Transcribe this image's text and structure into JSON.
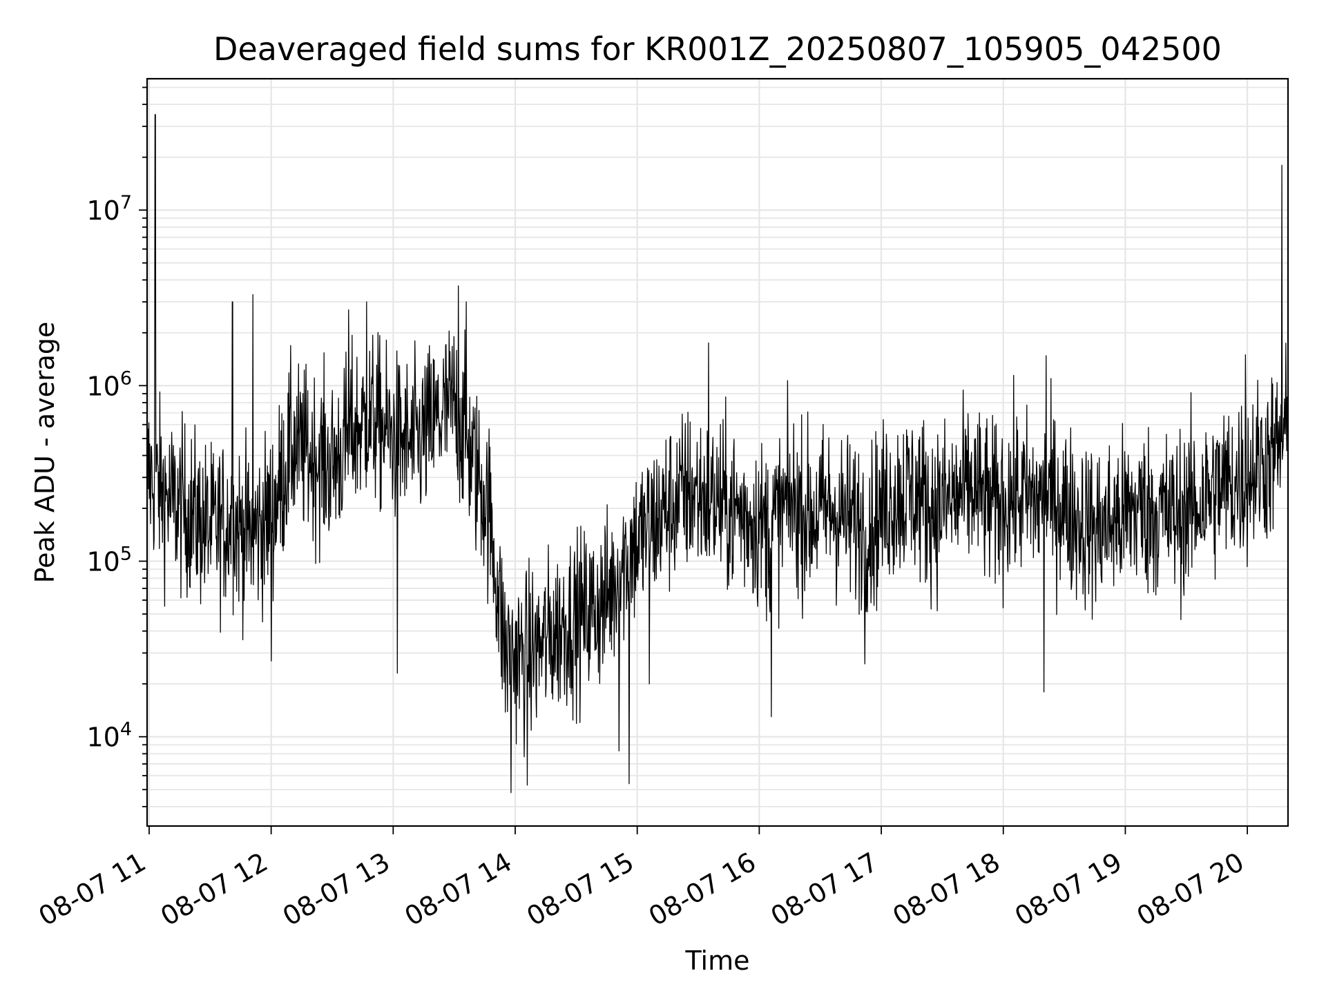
{
  "chart_data": {
    "type": "line",
    "title": "Deaveraged field sums for KR001Z_20250807_105905_042500",
    "xlabel": "Time",
    "ylabel": "Peak ADU - average",
    "y_scale": "log",
    "ylim": [
      3100,
      56000000
    ],
    "x_tick_labels": [
      "08-07 11",
      "08-07 12",
      "08-07 13",
      "08-07 14",
      "08-07 15",
      "08-07 16",
      "08-07 17",
      "08-07 18",
      "08-07 19",
      "08-07 20"
    ],
    "x_tick_times": [
      "2025-08-07 11:00",
      "2025-08-07 12:00",
      "2025-08-07 13:00",
      "2025-08-07 14:00",
      "2025-08-07 15:00",
      "2025-08-07 16:00",
      "2025-08-07 17:00",
      "2025-08-07 18:00",
      "2025-08-07 19:00",
      "2025-08-07 20:00"
    ],
    "x_range": [
      "2025-08-07 10:59",
      "2025-08-07 20:20"
    ],
    "y_tick_labels": [
      {
        "base": "10",
        "exp": "4",
        "value": 10000
      },
      {
        "base": "10",
        "exp": "5",
        "value": 100000
      },
      {
        "base": "10",
        "exp": "6",
        "value": 1000000
      },
      {
        "base": "10",
        "exp": "7",
        "value": 10000000
      }
    ],
    "grid": true,
    "line_color": "#000000",
    "grid_color": "#e6e6e6",
    "series": [
      {
        "x": [
          "2025-08-07 10:59",
          "2025-08-07 11:03",
          "2025-08-07 11:10",
          "2025-08-07 11:20",
          "2025-08-07 11:30",
          "2025-08-07 11:40",
          "2025-08-07 11:50",
          "2025-08-07 12:00",
          "2025-08-07 12:10",
          "2025-08-07 12:20",
          "2025-08-07 12:30",
          "2025-08-07 12:40",
          "2025-08-07 12:50",
          "2025-08-07 13:00",
          "2025-08-07 13:10",
          "2025-08-07 13:20",
          "2025-08-07 13:30",
          "2025-08-07 13:40",
          "2025-08-07 13:47",
          "2025-08-07 13:55",
          "2025-08-07 14:05",
          "2025-08-07 14:15",
          "2025-08-07 14:25",
          "2025-08-07 14:35",
          "2025-08-07 14:45",
          "2025-08-07 14:55",
          "2025-08-07 15:05",
          "2025-08-07 15:15",
          "2025-08-07 15:25",
          "2025-08-07 15:35",
          "2025-08-07 15:45",
          "2025-08-07 15:55",
          "2025-08-07 16:05",
          "2025-08-07 16:15",
          "2025-08-07 16:25",
          "2025-08-07 16:35",
          "2025-08-07 16:45",
          "2025-08-07 16:55",
          "2025-08-07 17:05",
          "2025-08-07 17:15",
          "2025-08-07 17:25",
          "2025-08-07 17:35",
          "2025-08-07 17:45",
          "2025-08-07 17:55",
          "2025-08-07 18:05",
          "2025-08-07 18:15",
          "2025-08-07 18:25",
          "2025-08-07 18:35",
          "2025-08-07 18:45",
          "2025-08-07 18:55",
          "2025-08-07 19:05",
          "2025-08-07 19:15",
          "2025-08-07 19:25",
          "2025-08-07 19:35",
          "2025-08-07 19:45",
          "2025-08-07 19:55",
          "2025-08-07 20:05",
          "2025-08-07 20:15",
          "2025-08-07 20:20"
        ],
        "y": [
          320000,
          280000,
          220000,
          190000,
          150000,
          170000,
          140000,
          180000,
          450000,
          400000,
          350000,
          550000,
          650000,
          500000,
          450000,
          600000,
          800000,
          350000,
          200000,
          30000,
          28000,
          35000,
          45000,
          50000,
          60000,
          110000,
          150000,
          200000,
          250000,
          230000,
          200000,
          180000,
          150000,
          220000,
          180000,
          200000,
          170000,
          160000,
          230000,
          250000,
          200000,
          220000,
          260000,
          200000,
          240000,
          220000,
          230000,
          180000,
          150000,
          170000,
          200000,
          190000,
          180000,
          210000,
          260000,
          280000,
          350000,
          420000,
          550000
        ]
      }
    ],
    "spikes": [
      {
        "x": "2025-08-07 11:03",
        "y": 35000000
      },
      {
        "x": "2025-08-07 20:17",
        "y": 18000000
      },
      {
        "x": "2025-08-07 11:41",
        "y": 3000000
      },
      {
        "x": "2025-08-07 11:51",
        "y": 3300000
      },
      {
        "x": "2025-08-07 12:38",
        "y": 2700000
      },
      {
        "x": "2025-08-07 12:47",
        "y": 3000000
      },
      {
        "x": "2025-08-07 13:32",
        "y": 3700000
      },
      {
        "x": "2025-08-07 13:36",
        "y": 3000000
      },
      {
        "x": "2025-08-07 15:35",
        "y": 1750000
      },
      {
        "x": "2025-08-07 18:21",
        "y": 1480000
      },
      {
        "x": "2025-08-07 19:59",
        "y": 1500000
      },
      {
        "x": "2025-08-07 13:58",
        "y": 4800
      },
      {
        "x": "2025-08-07 14:06",
        "y": 5300
      },
      {
        "x": "2025-08-07 14:56",
        "y": 5400
      },
      {
        "x": "2025-08-07 14:51",
        "y": 8300
      },
      {
        "x": "2025-08-07 15:06",
        "y": 20000
      },
      {
        "x": "2025-08-07 16:06",
        "y": 13000
      },
      {
        "x": "2025-08-07 18:20",
        "y": 18000
      },
      {
        "x": "2025-08-07 16:52",
        "y": 26000
      },
      {
        "x": "2025-08-07 12:00",
        "y": 27000
      },
      {
        "x": "2025-08-07 13:02",
        "y": 23000
      }
    ]
  }
}
